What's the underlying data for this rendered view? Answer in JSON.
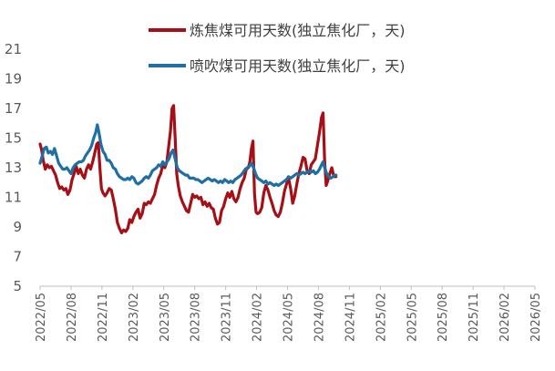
{
  "chart_data": {
    "type": "line",
    "title": "",
    "xlabel": "",
    "ylabel": "",
    "ylim": [
      5,
      21
    ],
    "yticks": [
      5,
      7,
      9,
      11,
      13,
      15,
      17,
      19,
      21
    ],
    "xticks": [
      "2022/05",
      "2022/08",
      "2022/11",
      "2023/02",
      "2023/05",
      "2023/08",
      "2023/11",
      "2024/02",
      "2024/05",
      "2024/08",
      "2024/11",
      "2025/02",
      "2025/05",
      "2025/08",
      "2025/11",
      "2026/02",
      "2026/05"
    ],
    "grid": false,
    "legend_position": "top",
    "series": [
      {
        "name": "炼焦煤可用天数(独立焦化厂，天)",
        "color": "#a50f15",
        "points": [
          [
            0,
            14.6
          ],
          [
            0.15,
            14.2
          ],
          [
            0.3,
            13.5
          ],
          [
            0.5,
            12.9
          ],
          [
            0.7,
            13.2
          ],
          [
            0.9,
            13.0
          ],
          [
            1.1,
            13.1
          ],
          [
            1.3,
            12.8
          ],
          [
            1.5,
            12.5
          ],
          [
            1.7,
            12.0
          ],
          [
            1.9,
            11.6
          ],
          [
            2.1,
            11.7
          ],
          [
            2.3,
            11.5
          ],
          [
            2.5,
            11.6
          ],
          [
            2.7,
            11.2
          ],
          [
            2.9,
            11.5
          ],
          [
            3.1,
            12.2
          ],
          [
            3.3,
            12.6
          ],
          [
            3.5,
            13.1
          ],
          [
            3.7,
            12.6
          ],
          [
            3.9,
            12.9
          ],
          [
            4.1,
            12.5
          ],
          [
            4.3,
            12.3
          ],
          [
            4.5,
            12.9
          ],
          [
            4.7,
            13.2
          ],
          [
            4.9,
            12.9
          ],
          [
            5.1,
            13.4
          ],
          [
            5.3,
            14.0
          ],
          [
            5.5,
            14.6
          ],
          [
            5.65,
            14.7
          ],
          [
            5.8,
            13.0
          ],
          [
            5.95,
            11.6
          ],
          [
            6.1,
            11.3
          ],
          [
            6.3,
            11.1
          ],
          [
            6.5,
            11.3
          ],
          [
            6.7,
            11.6
          ],
          [
            6.9,
            11.5
          ],
          [
            7.1,
            10.9
          ],
          [
            7.3,
            10.2
          ],
          [
            7.5,
            9.3
          ],
          [
            7.7,
            8.9
          ],
          [
            7.9,
            8.6
          ],
          [
            8.1,
            8.8
          ],
          [
            8.3,
            8.7
          ],
          [
            8.5,
            8.9
          ],
          [
            8.7,
            9.5
          ],
          [
            8.9,
            9.3
          ],
          [
            9.1,
            9.7
          ],
          [
            9.3,
            10.0
          ],
          [
            9.5,
            10.2
          ],
          [
            9.7,
            9.6
          ],
          [
            9.9,
            9.9
          ],
          [
            10.1,
            10.6
          ],
          [
            10.3,
            10.5
          ],
          [
            10.5,
            10.7
          ],
          [
            10.7,
            10.6
          ],
          [
            10.9,
            10.9
          ],
          [
            11.1,
            11.2
          ],
          [
            11.3,
            11.8
          ],
          [
            11.5,
            12.3
          ],
          [
            11.7,
            12.6
          ],
          [
            11.9,
            13.2
          ],
          [
            12.1,
            13.0
          ],
          [
            12.3,
            13.4
          ],
          [
            12.5,
            14.6
          ],
          [
            12.65,
            15.5
          ],
          [
            12.8,
            17.0
          ],
          [
            12.95,
            17.2
          ],
          [
            13.1,
            15.0
          ],
          [
            13.25,
            12.6
          ],
          [
            13.4,
            11.8
          ],
          [
            13.6,
            11.1
          ],
          [
            13.8,
            10.7
          ],
          [
            14.0,
            10.4
          ],
          [
            14.2,
            10.1
          ],
          [
            14.4,
            10.0
          ],
          [
            14.6,
            10.6
          ],
          [
            14.8,
            11.2
          ],
          [
            15.0,
            11.0
          ],
          [
            15.2,
            11.1
          ],
          [
            15.4,
            10.9
          ],
          [
            15.6,
            11.0
          ],
          [
            15.8,
            10.5
          ],
          [
            16.0,
            10.7
          ],
          [
            16.2,
            10.4
          ],
          [
            16.4,
            10.6
          ],
          [
            16.6,
            10.3
          ],
          [
            16.8,
            10.2
          ],
          [
            17.0,
            9.6
          ],
          [
            17.2,
            9.2
          ],
          [
            17.4,
            9.3
          ],
          [
            17.6,
            10.1
          ],
          [
            17.8,
            10.4
          ],
          [
            18.0,
            10.9
          ],
          [
            18.2,
            11.3
          ],
          [
            18.4,
            11.0
          ],
          [
            18.6,
            11.4
          ],
          [
            18.8,
            10.9
          ],
          [
            19.0,
            10.7
          ],
          [
            19.2,
            11.0
          ],
          [
            19.4,
            11.6
          ],
          [
            19.6,
            12.0
          ],
          [
            19.8,
            12.3
          ],
          [
            20.0,
            12.9
          ],
          [
            20.2,
            13.0
          ],
          [
            20.35,
            13.4
          ],
          [
            20.5,
            14.3
          ],
          [
            20.65,
            14.8
          ],
          [
            20.8,
            11.2
          ],
          [
            20.95,
            10.0
          ],
          [
            21.1,
            9.9
          ],
          [
            21.3,
            10.0
          ],
          [
            21.5,
            10.3
          ],
          [
            21.7,
            11.3
          ],
          [
            21.9,
            11.8
          ],
          [
            22.1,
            11.5
          ],
          [
            22.3,
            11.0
          ],
          [
            22.5,
            10.6
          ],
          [
            22.7,
            10.1
          ],
          [
            22.9,
            9.8
          ],
          [
            23.1,
            9.7
          ],
          [
            23.3,
            10.0
          ],
          [
            23.5,
            10.6
          ],
          [
            23.7,
            11.4
          ],
          [
            23.9,
            11.9
          ],
          [
            24.1,
            12.3
          ],
          [
            24.3,
            11.6
          ],
          [
            24.5,
            10.6
          ],
          [
            24.7,
            11.1
          ],
          [
            24.9,
            11.9
          ],
          [
            25.1,
            12.6
          ],
          [
            25.3,
            13.1
          ],
          [
            25.5,
            13.7
          ],
          [
            25.7,
            13.6
          ],
          [
            25.9,
            12.8
          ],
          [
            26.1,
            12.6
          ],
          [
            26.3,
            13.2
          ],
          [
            26.5,
            13.4
          ],
          [
            26.7,
            13.6
          ],
          [
            26.9,
            14.5
          ],
          [
            27.1,
            15.4
          ],
          [
            27.3,
            16.4
          ],
          [
            27.45,
            16.7
          ],
          [
            27.6,
            13.5
          ],
          [
            27.75,
            11.8
          ],
          [
            27.9,
            12.1
          ],
          [
            28.1,
            12.6
          ],
          [
            28.3,
            13.0
          ],
          [
            28.5,
            12.4
          ],
          [
            28.7,
            12.4
          ]
        ]
      },
      {
        "name": "喷吹煤可用天数(独立焦化厂，天)",
        "color": "#1f6fa5",
        "points": [
          [
            0,
            13.3
          ],
          [
            0.2,
            13.8
          ],
          [
            0.4,
            14.3
          ],
          [
            0.6,
            14.4
          ],
          [
            0.8,
            14.0
          ],
          [
            1.0,
            14.1
          ],
          [
            1.2,
            13.9
          ],
          [
            1.4,
            14.3
          ],
          [
            1.6,
            13.8
          ],
          [
            1.8,
            13.3
          ],
          [
            2.0,
            13.1
          ],
          [
            2.2,
            12.9
          ],
          [
            2.4,
            12.9
          ],
          [
            2.6,
            13.0
          ],
          [
            2.8,
            12.8
          ],
          [
            3.0,
            12.6
          ],
          [
            3.2,
            13.0
          ],
          [
            3.4,
            13.2
          ],
          [
            3.6,
            13.3
          ],
          [
            3.8,
            13.4
          ],
          [
            4.0,
            13.4
          ],
          [
            4.2,
            13.5
          ],
          [
            4.4,
            13.8
          ],
          [
            4.6,
            14.0
          ],
          [
            4.8,
            14.2
          ],
          [
            5.0,
            14.5
          ],
          [
            5.2,
            15.0
          ],
          [
            5.4,
            15.4
          ],
          [
            5.55,
            15.9
          ],
          [
            5.7,
            15.4
          ],
          [
            5.9,
            14.6
          ],
          [
            6.1,
            14.1
          ],
          [
            6.3,
            13.9
          ],
          [
            6.5,
            13.5
          ],
          [
            6.7,
            13.5
          ],
          [
            6.9,
            13.3
          ],
          [
            7.1,
            13.0
          ],
          [
            7.3,
            12.9
          ],
          [
            7.5,
            12.6
          ],
          [
            7.7,
            12.4
          ],
          [
            7.9,
            12.3
          ],
          [
            8.1,
            12.2
          ],
          [
            8.3,
            12.2
          ],
          [
            8.5,
            12.3
          ],
          [
            8.7,
            12.2
          ],
          [
            8.9,
            12.4
          ],
          [
            9.1,
            12.3
          ],
          [
            9.3,
            12.0
          ],
          [
            9.5,
            11.9
          ],
          [
            9.7,
            12.0
          ],
          [
            9.9,
            12.1
          ],
          [
            10.1,
            12.3
          ],
          [
            10.3,
            12.4
          ],
          [
            10.5,
            12.3
          ],
          [
            10.7,
            12.5
          ],
          [
            10.9,
            12.8
          ],
          [
            11.1,
            12.9
          ],
          [
            11.3,
            13.0
          ],
          [
            11.5,
            13.2
          ],
          [
            11.7,
            13.1
          ],
          [
            11.9,
            13.4
          ],
          [
            12.1,
            13.2
          ],
          [
            12.3,
            13.4
          ],
          [
            12.5,
            13.6
          ],
          [
            12.7,
            14.0
          ],
          [
            12.9,
            14.2
          ],
          [
            13.1,
            13.6
          ],
          [
            13.3,
            13.0
          ],
          [
            13.5,
            12.8
          ],
          [
            13.7,
            12.7
          ],
          [
            13.9,
            12.6
          ],
          [
            14.1,
            12.5
          ],
          [
            14.3,
            12.5
          ],
          [
            14.5,
            12.3
          ],
          [
            14.7,
            12.3
          ],
          [
            14.9,
            12.3
          ],
          [
            15.1,
            12.2
          ],
          [
            15.3,
            12.2
          ],
          [
            15.5,
            12.1
          ],
          [
            15.7,
            12.0
          ],
          [
            15.9,
            12.1
          ],
          [
            16.1,
            12.2
          ],
          [
            16.3,
            12.3
          ],
          [
            16.5,
            12.2
          ],
          [
            16.7,
            12.1
          ],
          [
            16.9,
            12.2
          ],
          [
            17.1,
            12.1
          ],
          [
            17.3,
            12.0
          ],
          [
            17.5,
            12.1
          ],
          [
            17.7,
            12.0
          ],
          [
            17.9,
            12.2
          ],
          [
            18.1,
            12.1
          ],
          [
            18.3,
            12.0
          ],
          [
            18.5,
            12.1
          ],
          [
            18.7,
            12.0
          ],
          [
            18.9,
            12.2
          ],
          [
            19.1,
            12.3
          ],
          [
            19.3,
            12.4
          ],
          [
            19.5,
            12.5
          ],
          [
            19.7,
            12.7
          ],
          [
            19.9,
            12.9
          ],
          [
            20.1,
            13.0
          ],
          [
            20.3,
            13.1
          ],
          [
            20.5,
            13.3
          ],
          [
            20.7,
            13.0
          ],
          [
            20.9,
            12.6
          ],
          [
            21.1,
            12.3
          ],
          [
            21.3,
            12.2
          ],
          [
            21.5,
            12.1
          ],
          [
            21.7,
            12.0
          ],
          [
            21.9,
            12.1
          ],
          [
            22.1,
            11.9
          ],
          [
            22.3,
            12.0
          ],
          [
            22.5,
            11.9
          ],
          [
            22.7,
            11.8
          ],
          [
            22.9,
            11.9
          ],
          [
            23.1,
            11.8
          ],
          [
            23.3,
            11.9
          ],
          [
            23.5,
            12.0
          ],
          [
            23.7,
            12.1
          ],
          [
            23.9,
            12.2
          ],
          [
            24.1,
            12.4
          ],
          [
            24.3,
            12.3
          ],
          [
            24.5,
            12.4
          ],
          [
            24.7,
            12.5
          ],
          [
            24.9,
            12.6
          ],
          [
            25.1,
            12.5
          ],
          [
            25.3,
            12.6
          ],
          [
            25.5,
            12.7
          ],
          [
            25.7,
            12.6
          ],
          [
            25.9,
            12.7
          ],
          [
            26.1,
            12.8
          ],
          [
            26.3,
            12.7
          ],
          [
            26.5,
            12.8
          ],
          [
            26.7,
            12.6
          ],
          [
            26.9,
            12.7
          ],
          [
            27.1,
            12.9
          ],
          [
            27.3,
            13.2
          ],
          [
            27.45,
            13.4
          ],
          [
            27.6,
            13.0
          ],
          [
            27.8,
            12.6
          ],
          [
            28.0,
            12.4
          ],
          [
            28.2,
            12.3
          ],
          [
            28.4,
            12.4
          ],
          [
            28.6,
            12.5
          ],
          [
            28.7,
            12.5
          ]
        ]
      }
    ]
  }
}
